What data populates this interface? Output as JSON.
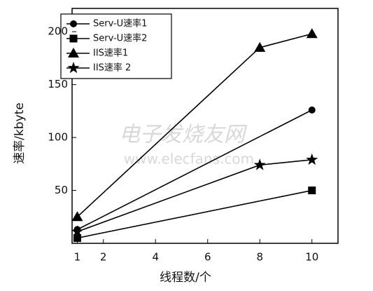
{
  "chart_data": {
    "type": "line",
    "xlabel": "线程数/个",
    "ylabel": "速率/kbyte",
    "watermark": [
      "电子发烧友网",
      "www.elecfans.com"
    ],
    "xlim": [
      0.8,
      11
    ],
    "xticks": [
      1,
      2,
      4,
      6,
      8,
      10
    ],
    "ylim": [
      0,
      222
    ],
    "yticks": [
      50,
      100,
      150,
      200
    ],
    "legend": "upper left",
    "series": [
      {
        "name": "Serv-U速率1",
        "marker": "circle",
        "color": "#000000",
        "x": [
          1,
          10
        ],
        "values": [
          13,
          126
        ]
      },
      {
        "name": "Serv-U速率2",
        "marker": "square",
        "color": "#000000",
        "x": [
          1,
          10
        ],
        "values": [
          5,
          50
        ]
      },
      {
        "name": "IIS速率1",
        "marker": "triangle",
        "color": "#000000",
        "x": [
          1,
          8,
          10
        ],
        "values": [
          25,
          185,
          198
        ]
      },
      {
        "name": "IIS速率 2",
        "marker": "star",
        "color": "#000000",
        "x": [
          1,
          8,
          10
        ],
        "values": [
          11,
          74,
          79
        ]
      }
    ]
  }
}
